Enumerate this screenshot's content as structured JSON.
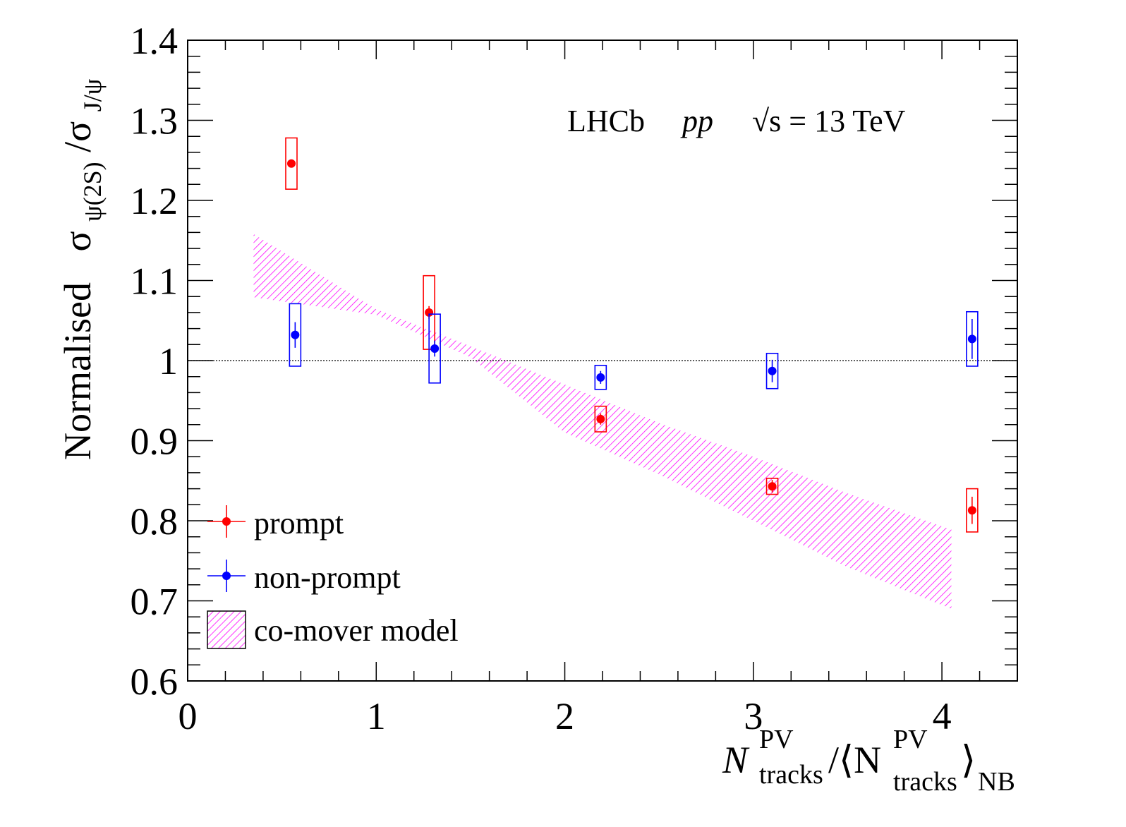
{
  "chart_data": {
    "type": "scatter",
    "xlim": [
      0,
      4.4
    ],
    "ylim": [
      0.6,
      1.4
    ],
    "x_ticks": [
      "0",
      "1",
      "2",
      "3",
      "4"
    ],
    "y_ticks": [
      "0.6",
      "0.7",
      "0.8",
      "0.9",
      "1",
      "1.1",
      "1.2",
      "1.3",
      "1.4"
    ],
    "ylabel": {
      "prefix": "Normalised",
      "sigma1": "σ",
      "sub1": "ψ(2S)",
      "slash": "/σ",
      "sub2": "J/ψ"
    },
    "xlabel": {
      "n1": "N",
      "sup1": "PV",
      "sub1": "tracks",
      "mid": "/⟨N",
      "sup2": "PV",
      "sub2": "tracks",
      "close": "⟩",
      "sub3": "NB"
    },
    "annotation": {
      "experiment": "LHCb",
      "system": "pp",
      "energy_sqrt": "√s",
      "energy_rest": " = 13 TeV"
    },
    "reference_line": 1.0,
    "series": [
      {
        "name": "prompt",
        "color": "#ff0000",
        "points": [
          {
            "x": 0.55,
            "y": 1.246,
            "stat": 0.005,
            "syst": 0.032
          },
          {
            "x": 1.28,
            "y": 1.06,
            "stat": 0.008,
            "syst": 0.046
          },
          {
            "x": 2.19,
            "y": 0.927,
            "stat": 0.007,
            "syst": 0.016
          },
          {
            "x": 3.1,
            "y": 0.843,
            "stat": 0.008,
            "syst": 0.01
          },
          {
            "x": 4.16,
            "y": 0.813,
            "stat": 0.017,
            "syst": 0.027
          }
        ]
      },
      {
        "name": "non-prompt",
        "color": "#0000ff",
        "points": [
          {
            "x": 0.57,
            "y": 1.032,
            "stat": 0.016,
            "syst": 0.039
          },
          {
            "x": 1.31,
            "y": 1.015,
            "stat": 0.01,
            "syst": 0.043
          },
          {
            "x": 2.19,
            "y": 0.979,
            "stat": 0.008,
            "syst": 0.015
          },
          {
            "x": 3.1,
            "y": 0.987,
            "stat": 0.014,
            "syst": 0.022
          },
          {
            "x": 4.16,
            "y": 1.027,
            "stat": 0.025,
            "syst": 0.034
          }
        ]
      }
    ],
    "band": {
      "name": "co-mover model",
      "color": "#ff00ff",
      "x": [
        0.35,
        1.0,
        1.5,
        2.0,
        2.5,
        3.0,
        3.5,
        4.05
      ],
      "upper": [
        1.158,
        1.064,
        1.018,
        0.97,
        0.922,
        0.88,
        0.834,
        0.789
      ],
      "lower": [
        1.079,
        1.057,
        1.004,
        0.91,
        0.858,
        0.8,
        0.742,
        0.69
      ]
    },
    "legend": {
      "position": "bottom-left",
      "entries": [
        "prompt",
        "non-prompt",
        "co-mover model"
      ]
    }
  }
}
